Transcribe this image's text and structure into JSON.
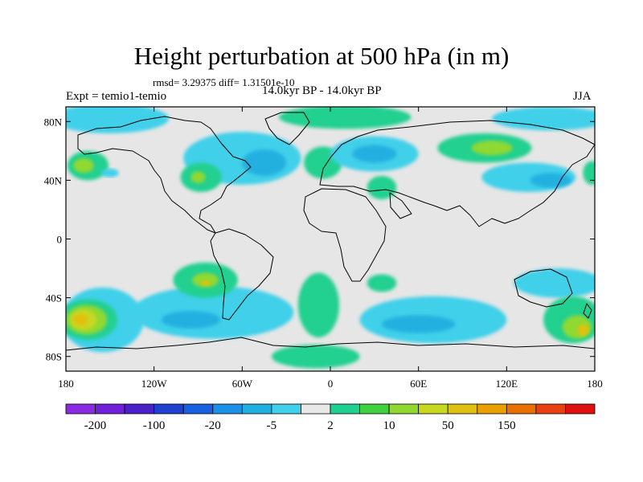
{
  "title": "Height perturbation at 500 hPa (in m)",
  "stats": "rmsd= 3.29375 diff= 1.31501e-10",
  "expt": "Expt = temio1-temio",
  "period": "14.0kyr BP - 14.0kyr BP",
  "season": "JJA",
  "map": {
    "lon_range": [
      -180,
      180
    ],
    "lat_range": [
      -90,
      90
    ],
    "x_ticks": [
      {
        "lon": -180,
        "label": "180"
      },
      {
        "lon": -120,
        "label": "120W"
      },
      {
        "lon": -60,
        "label": "60W"
      },
      {
        "lon": 0,
        "label": "0"
      },
      {
        "lon": 60,
        "label": "60E"
      },
      {
        "lon": 120,
        "label": "120E"
      },
      {
        "lon": 180,
        "label": "180"
      }
    ],
    "y_ticks": [
      {
        "lat": 80,
        "label": "80N"
      },
      {
        "lat": 40,
        "label": "40N"
      },
      {
        "lat": 0,
        "label": "0"
      },
      {
        "lat": -40,
        "label": "40S"
      },
      {
        "lat": -80,
        "label": "80S"
      }
    ],
    "background_color": "#e6e6e6"
  },
  "colorbar": {
    "colors": [
      "#8a2be2",
      "#7020d8",
      "#4b20c8",
      "#2040d0",
      "#1860e0",
      "#1a90e6",
      "#20b0e0",
      "#40d0ea",
      "#e8e8e8",
      "#20d090",
      "#40d040",
      "#90d830",
      "#c8d820",
      "#e0c010",
      "#e8a000",
      "#e87000",
      "#e84010",
      "#e01010"
    ],
    "labels": [
      {
        "boundary": 1,
        "text": "-200"
      },
      {
        "boundary": 3,
        "text": "-100"
      },
      {
        "boundary": 5,
        "text": "-20"
      },
      {
        "boundary": 7,
        "text": "-5"
      },
      {
        "boundary": 9,
        "text": "2"
      },
      {
        "boundary": 11,
        "text": "10"
      },
      {
        "boundary": 13,
        "text": "50"
      },
      {
        "boundary": 15,
        "text": "150"
      }
    ]
  },
  "regions": [
    {
      "name": "na-south-pacific-trough",
      "color": "#40d0ea",
      "lon": -155,
      "lat": -55,
      "rx": 28,
      "ry": 22
    },
    {
      "name": "south-pacific-ridge-outer",
      "color": "#20d090",
      "lon": -165,
      "lat": -55,
      "rx": 20,
      "ry": 14
    },
    {
      "name": "south-pacific-ridge-mid",
      "color": "#90d830",
      "lon": -166,
      "lat": -55,
      "rx": 14,
      "ry": 10
    },
    {
      "name": "south-pacific-ridge-core",
      "color": "#c8d820",
      "lon": -168,
      "lat": -55,
      "rx": 9,
      "ry": 7
    },
    {
      "name": "south-pacific-ridge-peak",
      "color": "#e0c010",
      "lon": -170,
      "lat": -55,
      "rx": 5,
      "ry": 4
    },
    {
      "name": "sa-trough",
      "color": "#40d0ea",
      "lon": -80,
      "lat": -50,
      "rx": 55,
      "ry": 18
    },
    {
      "name": "sa-trough-core",
      "color": "#20b0e0",
      "lon": -95,
      "lat": -55,
      "rx": 20,
      "ry": 6
    },
    {
      "name": "chile-ridge",
      "color": "#20d090",
      "lon": -85,
      "lat": -28,
      "rx": 22,
      "ry": 12
    },
    {
      "name": "chile-ridge-core",
      "color": "#90d830",
      "lon": -85,
      "lat": -28,
      "rx": 9,
      "ry": 5
    },
    {
      "name": "chile-ridge-peak",
      "color": "#e0c010",
      "lon": -85,
      "lat": -30,
      "rx": 3,
      "ry": 2
    },
    {
      "name": "atlantic-ridge-south",
      "color": "#20d090",
      "lon": -8,
      "lat": -45,
      "rx": 14,
      "ry": 22
    },
    {
      "name": "antarctic-ridge",
      "color": "#20d090",
      "lon": -10,
      "lat": -80,
      "rx": 30,
      "ry": 8
    },
    {
      "name": "indian-trough",
      "color": "#40d0ea",
      "lon": 70,
      "lat": -55,
      "rx": 50,
      "ry": 16
    },
    {
      "name": "indian-trough-core",
      "color": "#20b0e0",
      "lon": 60,
      "lat": -58,
      "rx": 25,
      "ry": 6
    },
    {
      "name": "east-trough-sw-pac",
      "color": "#40d0ea",
      "lon": 155,
      "lat": -30,
      "rx": 30,
      "ry": 10
    },
    {
      "name": "nz-ridge",
      "color": "#20d090",
      "lon": 165,
      "lat": -55,
      "rx": 20,
      "ry": 16
    },
    {
      "name": "nz-ridge-core",
      "color": "#90d830",
      "lon": 168,
      "lat": -60,
      "rx": 10,
      "ry": 8
    },
    {
      "name": "nz-ridge-peak",
      "color": "#e0c010",
      "lon": 172,
      "lat": -62,
      "rx": 4,
      "ry": 4
    },
    {
      "name": "se-atlantic-ridge",
      "color": "#20d090",
      "lon": 35,
      "lat": -30,
      "rx": 10,
      "ry": 6
    },
    {
      "name": "arctic-trough-west",
      "color": "#40d0ea",
      "lon": -150,
      "lat": 82,
      "rx": 40,
      "ry": 10
    },
    {
      "name": "arctic-ridge",
      "color": "#20d090",
      "lon": 10,
      "lat": 83,
      "rx": 45,
      "ry": 8
    },
    {
      "name": "arctic-trough-east",
      "color": "#40d0ea",
      "lon": 150,
      "lat": 82,
      "rx": 40,
      "ry": 8
    },
    {
      "name": "na-trough",
      "color": "#40d0ea",
      "lon": -60,
      "lat": 55,
      "rx": 40,
      "ry": 18
    },
    {
      "name": "na-trough-core",
      "color": "#20b0e0",
      "lon": -45,
      "lat": 52,
      "rx": 15,
      "ry": 9
    },
    {
      "name": "ne-pacific-ridge",
      "color": "#20d090",
      "lon": -165,
      "lat": 50,
      "rx": 14,
      "ry": 10
    },
    {
      "name": "ne-pacific-ridge-core",
      "color": "#90d830",
      "lon": -168,
      "lat": 50,
      "rx": 7,
      "ry": 5
    },
    {
      "name": "na-west-ridge",
      "color": "#20d090",
      "lon": -88,
      "lat": 42,
      "rx": 14,
      "ry": 10
    },
    {
      "name": "na-west-ridge-core",
      "color": "#90d830",
      "lon": -90,
      "lat": 42,
      "rx": 5,
      "ry": 4
    },
    {
      "name": "europe-ridge",
      "color": "#20d090",
      "lon": -5,
      "lat": 52,
      "rx": 13,
      "ry": 11
    },
    {
      "name": "eurasia-trough",
      "color": "#40d0ea",
      "lon": 30,
      "lat": 58,
      "rx": 30,
      "ry": 12
    },
    {
      "name": "eurasia-trough-core",
      "color": "#20b0e0",
      "lon": 30,
      "lat": 58,
      "rx": 15,
      "ry": 6
    },
    {
      "name": "caspian-ridge",
      "color": "#20d090",
      "lon": 35,
      "lat": 35,
      "rx": 10,
      "ry": 8
    },
    {
      "name": "siberia-ridge",
      "color": "#20d090",
      "lon": 105,
      "lat": 62,
      "rx": 32,
      "ry": 10
    },
    {
      "name": "siberia-ridge-core",
      "color": "#90d830",
      "lon": 110,
      "lat": 62,
      "rx": 14,
      "ry": 5
    },
    {
      "name": "east-asia-trough",
      "color": "#40d0ea",
      "lon": 135,
      "lat": 42,
      "rx": 32,
      "ry": 10
    },
    {
      "name": "east-asia-trough-core",
      "color": "#20b0e0",
      "lon": 150,
      "lat": 40,
      "rx": 14,
      "ry": 5
    },
    {
      "name": "nw-pacific-ridge",
      "color": "#20d090",
      "lon": 178,
      "lat": 45,
      "rx": 6,
      "ry": 8
    },
    {
      "name": "aleutian-trough",
      "color": "#40d0ea",
      "lon": -150,
      "lat": 45,
      "rx": 6,
      "ry": 3
    }
  ]
}
